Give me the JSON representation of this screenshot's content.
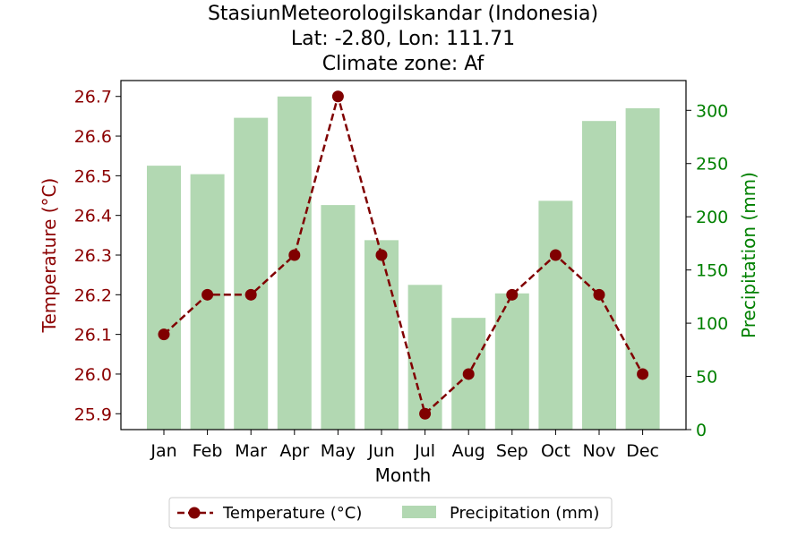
{
  "chart_data": {
    "type": "bar",
    "title_lines": [
      "StasiunMeteorologiIskandar (Indonesia)",
      "Lat: -2.80, Lon: 111.71",
      "Climate zone: Af"
    ],
    "xlabel": "Month",
    "ylabel_left": "Temperature (°C)",
    "ylabel_right": "Precipitation (mm)",
    "categories": [
      "Jan",
      "Feb",
      "Mar",
      "Apr",
      "May",
      "Jun",
      "Jul",
      "Aug",
      "Sep",
      "Oct",
      "Nov",
      "Dec"
    ],
    "series": [
      {
        "name": "Temperature (°C)",
        "type": "line",
        "axis": "left",
        "color": "#800000",
        "style": "dashed",
        "marker": "circle",
        "values": [
          26.1,
          26.2,
          26.2,
          26.3,
          26.7,
          26.3,
          25.9,
          26.0,
          26.2,
          26.3,
          26.2,
          26.0
        ]
      },
      {
        "name": "Precipitation (mm)",
        "type": "bar",
        "axis": "right",
        "color": "#b2d8b2",
        "values": [
          248,
          240,
          293,
          313,
          211,
          178,
          136,
          105,
          128,
          215,
          290,
          302
        ]
      }
    ],
    "ylim_left": [
      25.86,
      26.74
    ],
    "yticks_left": [
      "25.9",
      "26.0",
      "26.1",
      "26.2",
      "26.3",
      "26.4",
      "26.5",
      "26.6",
      "26.7"
    ],
    "ylim_right": [
      0,
      328
    ],
    "yticks_right": [
      "0",
      "50",
      "100",
      "150",
      "200",
      "250",
      "300"
    ],
    "left_axis_color": "#8b0000",
    "right_axis_color": "#008000",
    "grid": false,
    "legend": {
      "placement": "bottom-center",
      "items": [
        "Temperature (°C)",
        "Precipitation (mm)"
      ]
    }
  }
}
